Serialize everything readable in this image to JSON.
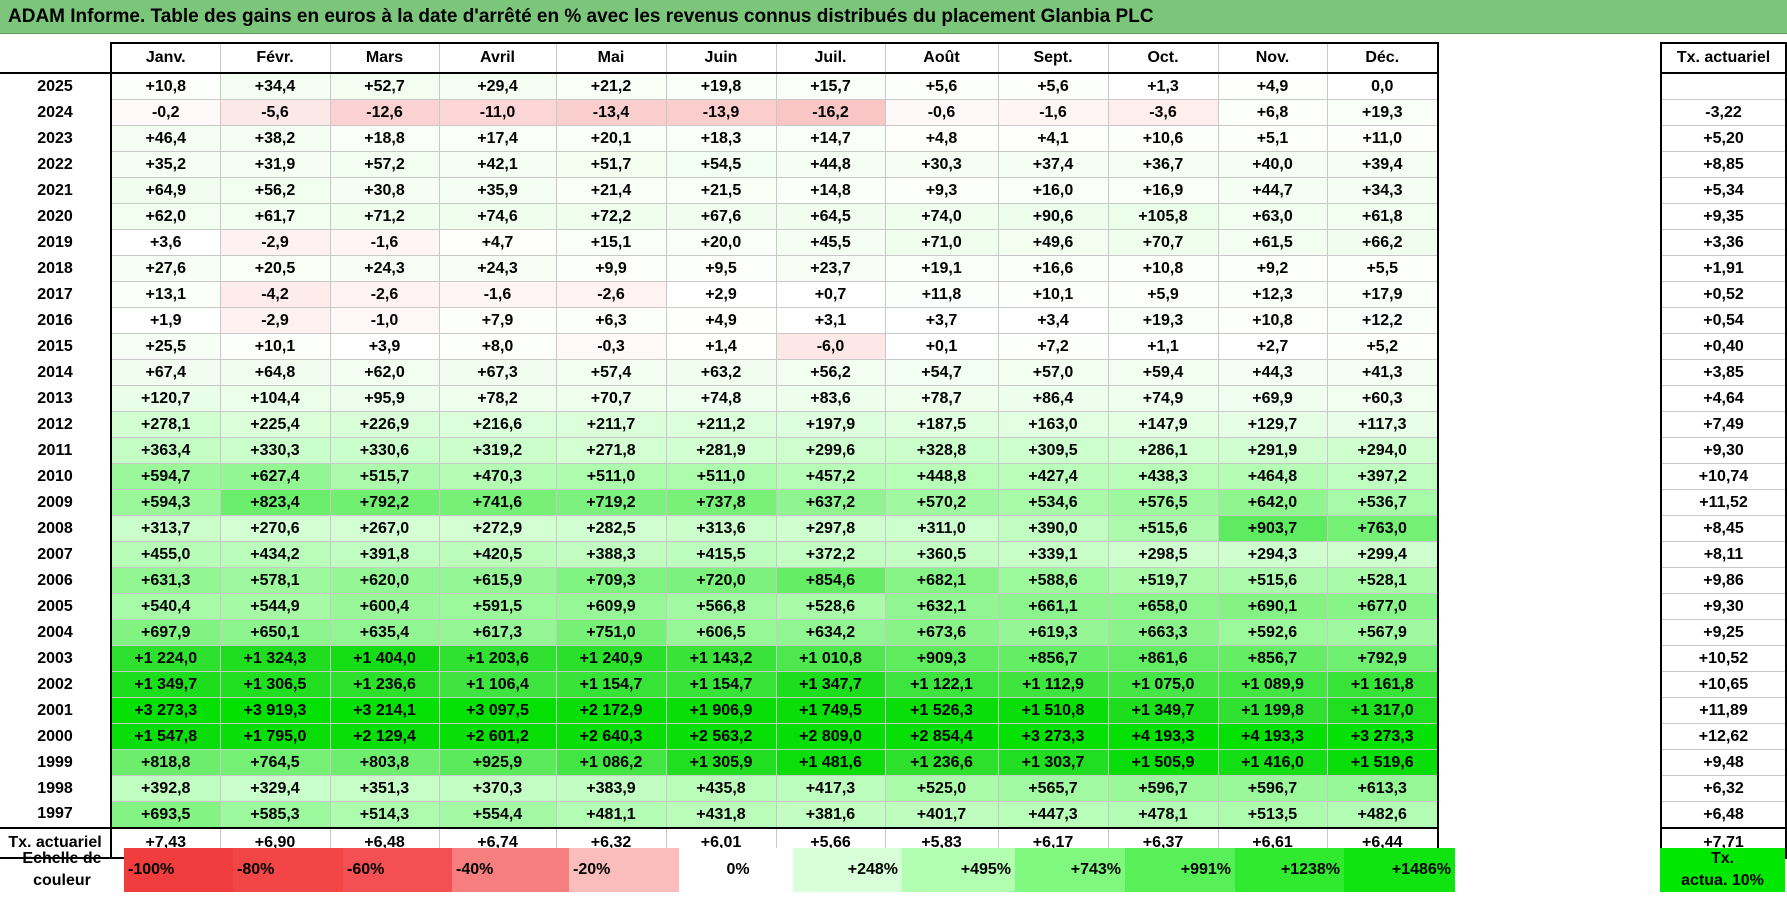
{
  "title": "ADAM Informe. Table des gains en euros à la date d'arrêté en % avec les revenus connus distribués du placement Glanbia PLC",
  "months": [
    "Janv.",
    "Févr.",
    "Mars",
    "Avril",
    "Mai",
    "Juin",
    "Juil.",
    "Août",
    "Sept.",
    "Oct.",
    "Nov.",
    "Déc."
  ],
  "side_header": "Tx. actuariel",
  "rows": [
    {
      "year": "2025",
      "vals": [
        "+10,8",
        "+34,4",
        "+52,7",
        "+29,4",
        "+21,2",
        "+19,8",
        "+15,7",
        "+5,6",
        "+5,6",
        "+1,3",
        "+4,9",
        "0,0"
      ],
      "tx": ""
    },
    {
      "year": "2024",
      "vals": [
        "-0,2",
        "-5,6",
        "-12,6",
        "-11,0",
        "-13,4",
        "-13,9",
        "-16,2",
        "-0,6",
        "-1,6",
        "-3,6",
        "+6,8",
        "+19,3"
      ],
      "tx": "-3,22"
    },
    {
      "year": "2023",
      "vals": [
        "+46,4",
        "+38,2",
        "+18,8",
        "+17,4",
        "+20,1",
        "+18,3",
        "+14,7",
        "+4,8",
        "+4,1",
        "+10,6",
        "+5,1",
        "+11,0"
      ],
      "tx": "+5,20"
    },
    {
      "year": "2022",
      "vals": [
        "+35,2",
        "+31,9",
        "+57,2",
        "+42,1",
        "+51,7",
        "+54,5",
        "+44,8",
        "+30,3",
        "+37,4",
        "+36,7",
        "+40,0",
        "+39,4"
      ],
      "tx": "+8,85"
    },
    {
      "year": "2021",
      "vals": [
        "+64,9",
        "+56,2",
        "+30,8",
        "+35,9",
        "+21,4",
        "+21,5",
        "+14,8",
        "+9,3",
        "+16,0",
        "+16,9",
        "+44,7",
        "+34,3"
      ],
      "tx": "+5,34"
    },
    {
      "year": "2020",
      "vals": [
        "+62,0",
        "+61,7",
        "+71,2",
        "+74,6",
        "+72,2",
        "+67,6",
        "+64,5",
        "+74,0",
        "+90,6",
        "+105,8",
        "+63,0",
        "+61,8"
      ],
      "tx": "+9,35"
    },
    {
      "year": "2019",
      "vals": [
        "+3,6",
        "-2,9",
        "-1,6",
        "+4,7",
        "+15,1",
        "+20,0",
        "+45,5",
        "+71,0",
        "+49,6",
        "+70,7",
        "+61,5",
        "+66,2"
      ],
      "tx": "+3,36"
    },
    {
      "year": "2018",
      "vals": [
        "+27,6",
        "+20,5",
        "+24,3",
        "+24,3",
        "+9,9",
        "+9,5",
        "+23,7",
        "+19,1",
        "+16,6",
        "+10,8",
        "+9,2",
        "+5,5"
      ],
      "tx": "+1,91"
    },
    {
      "year": "2017",
      "vals": [
        "+13,1",
        "-4,2",
        "-2,6",
        "-1,6",
        "-2,6",
        "+2,9",
        "+0,7",
        "+11,8",
        "+10,1",
        "+5,9",
        "+12,3",
        "+17,9"
      ],
      "tx": "+0,52"
    },
    {
      "year": "2016",
      "vals": [
        "+1,9",
        "-2,9",
        "-1,0",
        "+7,9",
        "+6,3",
        "+4,9",
        "+3,1",
        "+3,7",
        "+3,4",
        "+19,3",
        "+10,8",
        "+12,2"
      ],
      "tx": "+0,54"
    },
    {
      "year": "2015",
      "vals": [
        "+25,5",
        "+10,1",
        "+3,9",
        "+8,0",
        "-0,3",
        "+1,4",
        "-6,0",
        "+0,1",
        "+7,2",
        "+1,1",
        "+2,7",
        "+5,2"
      ],
      "tx": "+0,40"
    },
    {
      "year": "2014",
      "vals": [
        "+67,4",
        "+64,8",
        "+62,0",
        "+67,3",
        "+57,4",
        "+63,2",
        "+56,2",
        "+54,7",
        "+57,0",
        "+59,4",
        "+44,3",
        "+41,3"
      ],
      "tx": "+3,85"
    },
    {
      "year": "2013",
      "vals": [
        "+120,7",
        "+104,4",
        "+95,9",
        "+78,2",
        "+70,7",
        "+74,8",
        "+83,6",
        "+78,7",
        "+86,4",
        "+74,9",
        "+69,9",
        "+60,3"
      ],
      "tx": "+4,64"
    },
    {
      "year": "2012",
      "vals": [
        "+278,1",
        "+225,4",
        "+226,9",
        "+216,6",
        "+211,7",
        "+211,2",
        "+197,9",
        "+187,5",
        "+163,0",
        "+147,9",
        "+129,7",
        "+117,3"
      ],
      "tx": "+7,49"
    },
    {
      "year": "2011",
      "vals": [
        "+363,4",
        "+330,3",
        "+330,6",
        "+319,2",
        "+271,8",
        "+281,9",
        "+299,6",
        "+328,8",
        "+309,5",
        "+286,1",
        "+291,9",
        "+294,0"
      ],
      "tx": "+9,30"
    },
    {
      "year": "2010",
      "vals": [
        "+594,7",
        "+627,4",
        "+515,7",
        "+470,3",
        "+511,0",
        "+511,0",
        "+457,2",
        "+448,8",
        "+427,4",
        "+438,3",
        "+464,8",
        "+397,2"
      ],
      "tx": "+10,74"
    },
    {
      "year": "2009",
      "vals": [
        "+594,3",
        "+823,4",
        "+792,2",
        "+741,6",
        "+719,2",
        "+737,8",
        "+637,2",
        "+570,2",
        "+534,6",
        "+576,5",
        "+642,0",
        "+536,7"
      ],
      "tx": "+11,52"
    },
    {
      "year": "2008",
      "vals": [
        "+313,7",
        "+270,6",
        "+267,0",
        "+272,9",
        "+282,5",
        "+313,6",
        "+297,8",
        "+311,0",
        "+390,0",
        "+515,6",
        "+903,7",
        "+763,0"
      ],
      "tx": "+8,45"
    },
    {
      "year": "2007",
      "vals": [
        "+455,0",
        "+434,2",
        "+391,8",
        "+420,5",
        "+388,3",
        "+415,5",
        "+372,2",
        "+360,5",
        "+339,1",
        "+298,5",
        "+294,3",
        "+299,4"
      ],
      "tx": "+8,11"
    },
    {
      "year": "2006",
      "vals": [
        "+631,3",
        "+578,1",
        "+620,0",
        "+615,9",
        "+709,3",
        "+720,0",
        "+854,6",
        "+682,1",
        "+588,6",
        "+519,7",
        "+515,6",
        "+528,1"
      ],
      "tx": "+9,86"
    },
    {
      "year": "2005",
      "vals": [
        "+540,4",
        "+544,9",
        "+600,4",
        "+591,5",
        "+609,9",
        "+566,8",
        "+528,6",
        "+632,1",
        "+661,1",
        "+658,0",
        "+690,1",
        "+677,0"
      ],
      "tx": "+9,30"
    },
    {
      "year": "2004",
      "vals": [
        "+697,9",
        "+650,1",
        "+635,4",
        "+617,3",
        "+751,0",
        "+606,5",
        "+634,2",
        "+673,6",
        "+619,3",
        "+663,3",
        "+592,6",
        "+567,9"
      ],
      "tx": "+9,25"
    },
    {
      "year": "2003",
      "vals": [
        "+1 224,0",
        "+1 324,3",
        "+1 404,0",
        "+1 203,6",
        "+1 240,9",
        "+1 143,2",
        "+1 010,8",
        "+909,3",
        "+856,7",
        "+861,6",
        "+856,7",
        "+792,9"
      ],
      "tx": "+10,52"
    },
    {
      "year": "2002",
      "vals": [
        "+1 349,7",
        "+1 306,5",
        "+1 236,6",
        "+1 106,4",
        "+1 154,7",
        "+1 154,7",
        "+1 347,7",
        "+1 122,1",
        "+1 112,9",
        "+1 075,0",
        "+1 089,9",
        "+1 161,8"
      ],
      "tx": "+10,65"
    },
    {
      "year": "2001",
      "vals": [
        "+3 273,3",
        "+3 919,3",
        "+3 214,1",
        "+3 097,5",
        "+2 172,9",
        "+1 906,9",
        "+1 749,5",
        "+1 526,3",
        "+1 510,8",
        "+1 349,7",
        "+1 199,8",
        "+1 317,0"
      ],
      "tx": "+11,89"
    },
    {
      "year": "2000",
      "vals": [
        "+1 547,8",
        "+1 795,0",
        "+2 129,4",
        "+2 601,2",
        "+2 640,3",
        "+2 563,2",
        "+2 809,0",
        "+2 854,4",
        "+3 273,3",
        "+4 193,3",
        "+4 193,3",
        "+3 273,3"
      ],
      "tx": "+12,62"
    },
    {
      "year": "1999",
      "vals": [
        "+818,8",
        "+764,5",
        "+803,8",
        "+925,9",
        "+1 086,2",
        "+1 305,9",
        "+1 481,6",
        "+1 236,6",
        "+1 303,7",
        "+1 505,9",
        "+1 416,0",
        "+1 519,6"
      ],
      "tx": "+9,48"
    },
    {
      "year": "1998",
      "vals": [
        "+392,8",
        "+329,4",
        "+351,3",
        "+370,3",
        "+383,9",
        "+435,8",
        "+417,3",
        "+525,0",
        "+565,7",
        "+596,7",
        "+596,7",
        "+613,3"
      ],
      "tx": "+6,32"
    },
    {
      "year": "1997",
      "vals": [
        "+693,5",
        "+585,3",
        "+514,3",
        "+554,4",
        "+481,1",
        "+431,8",
        "+381,6",
        "+401,7",
        "+447,3",
        "+478,1",
        "+513,5",
        "+482,6"
      ],
      "tx": "+6,48"
    }
  ],
  "footer": {
    "label": "Tx. actuariel",
    "vals": [
      "+7,43",
      "+6,90",
      "+6,48",
      "+6,74",
      "+6,32",
      "+6,01",
      "+5,66",
      "+5,83",
      "+6,17",
      "+6,37",
      "+6,61",
      "+6,44"
    ],
    "tx": "+7,71"
  },
  "legend": {
    "label_line1": "Echelle de",
    "label_line2": "couleur",
    "items": [
      {
        "text": "-100%",
        "color": "#f03c3c"
      },
      {
        "text": "-80%",
        "color": "#f24545"
      },
      {
        "text": "-60%",
        "color": "#f44f52"
      },
      {
        "text": "-40%",
        "color": "#f67e7e"
      },
      {
        "text": "-20%",
        "color": "#fbbcbc"
      },
      {
        "text": "0%",
        "color": "#ffffff"
      },
      {
        "text": "+248%",
        "color": "#d8ffd8"
      },
      {
        "text": "+495%",
        "color": "#b2ffb2"
      },
      {
        "text": "+743%",
        "color": "#80f880"
      },
      {
        "text": "+991%",
        "color": "#58f058"
      },
      {
        "text": "+1238%",
        "color": "#30ea30"
      },
      {
        "text": "+1486%",
        "color": "#10e410"
      }
    ],
    "last_line1": "Tx.",
    "last_line2": "actua. 10%",
    "last_color": "#00e800"
  }
}
